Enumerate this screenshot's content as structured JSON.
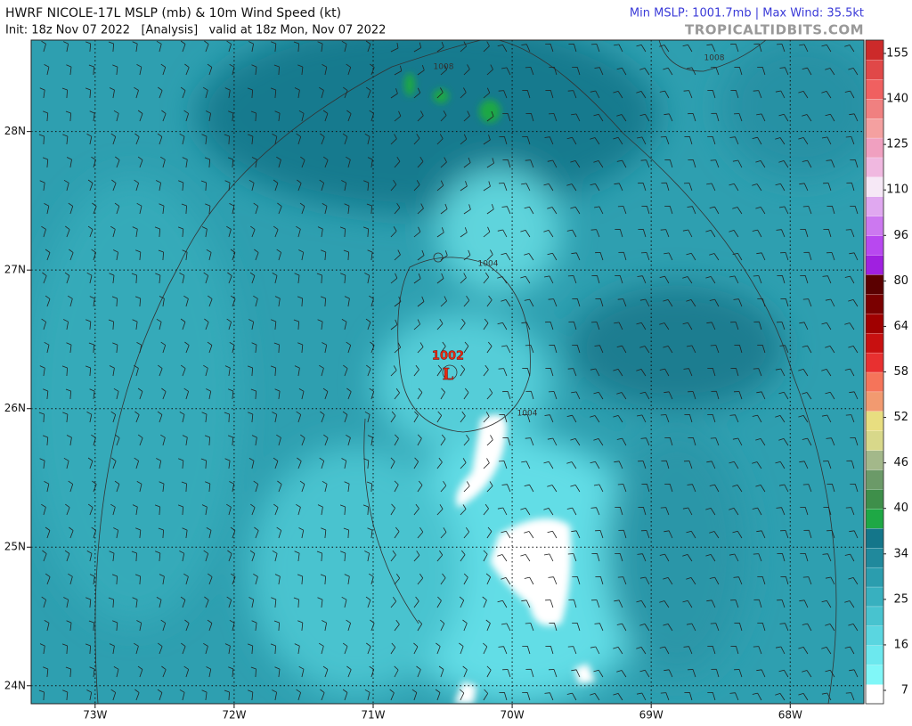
{
  "header": {
    "title": "HWRF NICOLE-17L MSLP (mb) & 10m Wind Speed (kt)",
    "subtitle": "Init: 18z Nov 07 2022   [Analysis]   valid at 18z Mon, Nov 07 2022",
    "stats": "Min MSLP: 1001.7mb | Max Wind: 35.5kt",
    "site": "TROPICALTIDBITS.COM"
  },
  "map": {
    "xlim": [
      -73.46,
      -67.47
    ],
    "ylim": [
      23.87,
      28.66
    ],
    "lon_ticks": [
      {
        "value": -73,
        "label": "73W"
      },
      {
        "value": -72,
        "label": "72W"
      },
      {
        "value": -71,
        "label": "71W"
      },
      {
        "value": -70,
        "label": "70W"
      },
      {
        "value": -69,
        "label": "69W"
      },
      {
        "value": -68,
        "label": "68W"
      }
    ],
    "lat_ticks": [
      {
        "value": 24,
        "label": "24N"
      },
      {
        "value": 25,
        "label": "25N"
      },
      {
        "value": 26,
        "label": "26N"
      },
      {
        "value": 27,
        "label": "27N"
      },
      {
        "value": 28,
        "label": "28N"
      }
    ],
    "contour_labels": [
      "1008",
      "1008",
      "1004",
      "1004"
    ],
    "low_pressure": "1002",
    "low_symbol": "L"
  },
  "colorbar": {
    "ticks": [
      7,
      16,
      25,
      34,
      40,
      46,
      52,
      58,
      64,
      80,
      96,
      110,
      125,
      140,
      155
    ],
    "colors": [
      "#ffffff",
      "#80f7f8",
      "#6ce8ee",
      "#5ad6e0",
      "#48c3cf",
      "#38b0bf",
      "#2b9dae",
      "#20899c",
      "#14768a",
      "#1ea845",
      "#3e8f4a",
      "#6b9a68",
      "#a3b88a",
      "#d8d88a",
      "#e8de80",
      "#f29a70",
      "#f5745a",
      "#e83030",
      "#c81010",
      "#a00000",
      "#7a0000",
      "#5a0000",
      "#a020e0",
      "#b848f0",
      "#cc78f0",
      "#e0a8f0",
      "#f6e8f6",
      "#f0b8e0",
      "#f0a0c0",
      "#f4a0a0",
      "#f08080",
      "#f06060",
      "#e04848",
      "#cc2a2a"
    ]
  }
}
